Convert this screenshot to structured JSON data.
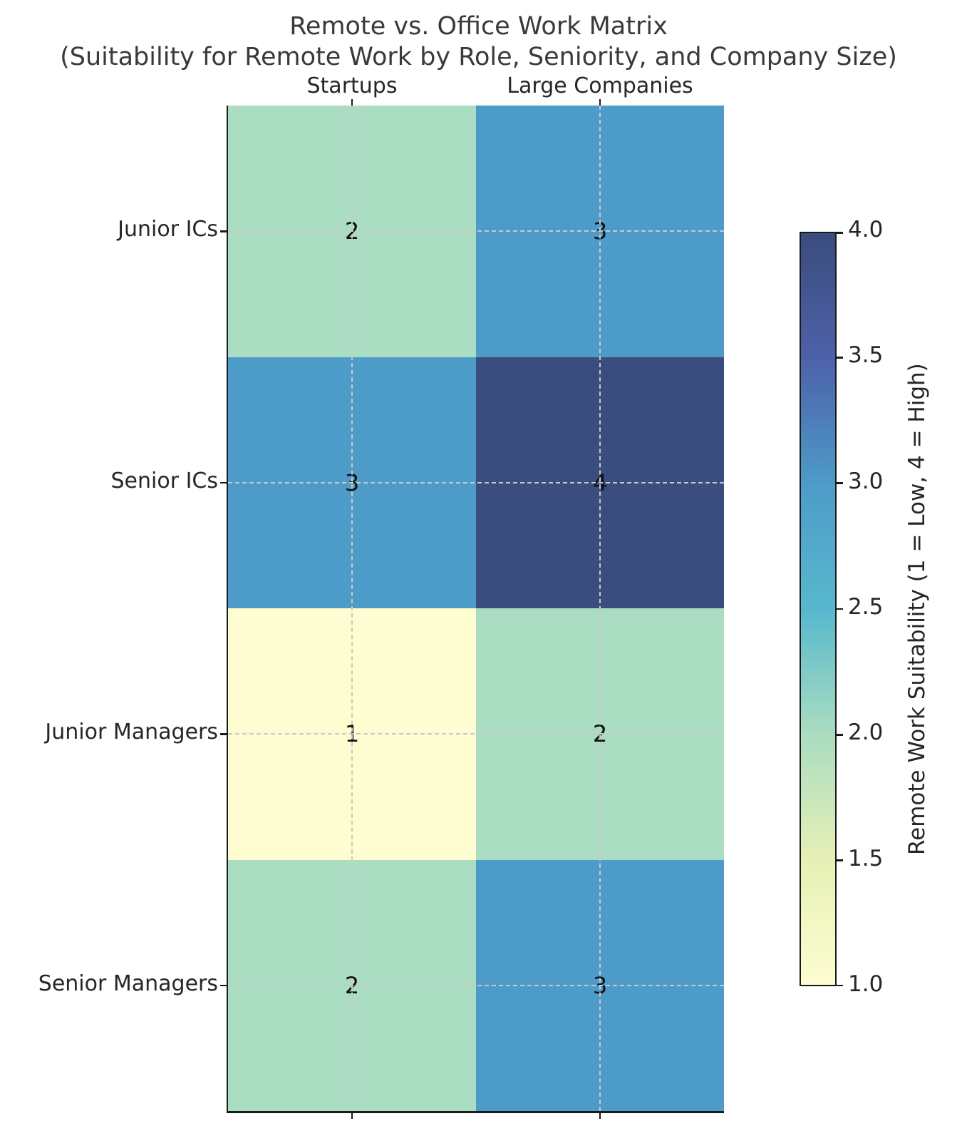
{
  "title": {
    "line1": "Remote vs. Office Work Matrix",
    "line2": "(Suitability for Remote Work by Role, Seniority, and Company Size)"
  },
  "chart_data": {
    "type": "heatmap",
    "x_categories": [
      "Startups",
      "Large Companies"
    ],
    "y_categories": [
      "Junior ICs",
      "Senior ICs",
      "Junior Managers",
      "Senior Managers"
    ],
    "values": [
      [
        2,
        3
      ],
      [
        3,
        4
      ],
      [
        1,
        2
      ],
      [
        2,
        3
      ]
    ],
    "value_range": [
      1,
      4
    ],
    "cell_colors": {
      "1": "#fdfdd1",
      "2": "#aaddc1",
      "3": "#4d9bc9",
      "4": "#3b4c7e"
    },
    "grid": {
      "style": "dashed",
      "color": "#c9c9c9"
    },
    "legend_position": "right",
    "colorbar": {
      "label": "Remote Work Suitability (1 = Low, 4 = High)",
      "min": 1.0,
      "max": 4.0,
      "tick_labels": [
        "4.0",
        "3.5",
        "3.0",
        "2.5",
        "2.0",
        "1.5",
        "1.0"
      ],
      "tick_values": [
        4.0,
        3.5,
        3.0,
        2.5,
        2.0,
        1.5,
        1.0
      ],
      "gradient": [
        {
          "value": 1.0,
          "color": "#fdfdd1"
        },
        {
          "value": 1.5,
          "color": "#e6f0b5"
        },
        {
          "value": 2.0,
          "color": "#aaddc1"
        },
        {
          "value": 2.5,
          "color": "#57b8cd"
        },
        {
          "value": 3.0,
          "color": "#4d9bc9"
        },
        {
          "value": 3.5,
          "color": "#4d61a9"
        },
        {
          "value": 4.0,
          "color": "#3b4c7e"
        }
      ]
    }
  }
}
